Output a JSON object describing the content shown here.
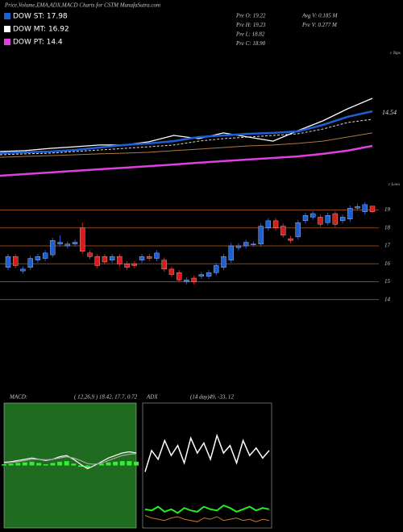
{
  "header": {
    "title": "Price,Volume,EMA,ADX,MACD Charts for CSTM MunafaSutra.com",
    "legend": [
      {
        "label": "DOW ST: 17.98",
        "color": "#1e5fd6"
      },
      {
        "label": "DOW MT: 16.92",
        "color": "#ffffff"
      },
      {
        "label": "DOW PT: 14.4",
        "color": "#e040e0"
      }
    ],
    "info": [
      "Pre  O: 19.22",
      "Pre  H: 19.23",
      "Pre  L: 18.82",
      "Pre  C: 18.90"
    ],
    "volume": [
      "Avg  V: 0.185 M",
      "Pre  V: 0.277 M"
    ]
  },
  "chart_data": [
    {
      "type": "line",
      "annotation": "14.54",
      "corner_label": "c Tops",
      "ylim": [
        12.5,
        20
      ],
      "series": [
        {
          "name": "Price",
          "color": "#ffffff",
          "values": [
            14.18,
            14.23,
            14.36,
            14.45,
            14.55,
            14.55,
            14.73,
            15.09,
            14.91,
            15.23,
            15.0,
            14.77,
            15.36,
            15.91,
            16.59,
            17.18
          ]
        },
        {
          "name": "EMA short",
          "color": "#1e5fd6",
          "values": [
            14.09,
            14.14,
            14.18,
            14.27,
            14.41,
            14.55,
            14.64,
            14.77,
            15.0,
            15.09,
            15.18,
            15.23,
            15.32,
            15.68,
            16.14,
            16.45
          ]
        },
        {
          "name": "EMA mid",
          "color": "#dddddd",
          "values": [
            14.0,
            14.05,
            14.09,
            14.18,
            14.27,
            14.36,
            14.45,
            14.55,
            14.77,
            14.91,
            15.0,
            15.09,
            15.18,
            15.45,
            15.82,
            16.0
          ]
        },
        {
          "name": "EMA long",
          "color": "#b07840",
          "values": [
            13.86,
            13.91,
            13.95,
            14.0,
            14.05,
            14.09,
            14.14,
            14.23,
            14.32,
            14.41,
            14.5,
            14.55,
            14.64,
            14.77,
            15.0,
            15.23
          ]
        },
        {
          "name": "EMA very long",
          "color": "#e040e0",
          "values": [
            12.82,
            12.91,
            13.0,
            13.09,
            13.18,
            13.27,
            13.36,
            13.45,
            13.55,
            13.64,
            13.73,
            13.82,
            13.91,
            14.05,
            14.23,
            14.5
          ]
        }
      ]
    },
    {
      "type": "candlestick",
      "corner_label": "c Lows",
      "ylim": [
        13.4,
        20.6
      ],
      "yticks": [
        14,
        15,
        16,
        17,
        18,
        19
      ],
      "up_color": "#1e5fd6",
      "down_color": "#d81b1b",
      "grid_color": "#8b4513",
      "open": [
        15.8,
        16.4,
        15.6,
        15.8,
        16.2,
        16.3,
        16.5,
        17.1,
        17.0,
        17.1,
        18.0,
        16.6,
        16.4,
        16.4,
        16.2,
        16.4,
        16.0,
        16.0,
        16.2,
        16.4,
        16.3,
        16.2,
        15.7,
        15.5,
        15.0,
        15.2,
        15.3,
        15.3,
        15.5,
        15.8,
        16.2,
        16.9,
        17.0,
        17.1,
        17.1,
        18.0,
        18.4,
        18.1,
        17.4,
        17.5,
        18.4,
        18.6,
        18.6,
        18.3,
        18.8,
        18.4,
        18.5,
        19.1,
        18.9,
        19.22
      ],
      "high": [
        16.55,
        16.55,
        15.85,
        16.45,
        16.55,
        16.75,
        17.45,
        17.6,
        17.25,
        17.35,
        18.3,
        16.75,
        16.55,
        16.55,
        16.55,
        16.55,
        16.15,
        16.15,
        16.55,
        16.55,
        16.75,
        16.35,
        15.85,
        15.65,
        15.25,
        15.35,
        15.55,
        15.65,
        16.05,
        16.55,
        17.15,
        17.15,
        17.35,
        17.25,
        18.25,
        18.55,
        18.55,
        18.25,
        17.55,
        18.45,
        18.85,
        18.95,
        18.75,
        18.85,
        18.95,
        18.75,
        19.25,
        19.35,
        19.45,
        19.23
      ],
      "low": [
        15.65,
        15.75,
        15.45,
        15.65,
        16.05,
        16.15,
        16.35,
        16.95,
        16.85,
        16.95,
        16.55,
        16.25,
        15.75,
        15.95,
        16.05,
        15.85,
        15.65,
        15.75,
        16.05,
        16.15,
        16.15,
        15.55,
        15.25,
        14.95,
        14.85,
        14.85,
        15.15,
        15.15,
        15.35,
        15.65,
        16.05,
        16.75,
        16.85,
        16.95,
        16.95,
        17.85,
        17.85,
        17.45,
        17.15,
        17.35,
        18.25,
        18.45,
        18.05,
        18.15,
        18.05,
        18.25,
        18.35,
        18.95,
        18.75,
        18.82
      ],
      "close": [
        16.4,
        15.9,
        15.7,
        16.3,
        16.4,
        16.6,
        17.3,
        17.2,
        17.1,
        17.2,
        16.7,
        16.4,
        15.9,
        16.1,
        16.4,
        16.0,
        15.8,
        15.9,
        16.4,
        16.3,
        16.6,
        15.7,
        15.4,
        15.1,
        15.1,
        15.0,
        15.4,
        15.5,
        15.9,
        16.4,
        17.0,
        17.0,
        17.2,
        17.1,
        18.1,
        18.4,
        18.0,
        17.6,
        17.3,
        18.3,
        18.7,
        18.8,
        18.2,
        18.7,
        18.2,
        18.6,
        19.1,
        19.2,
        19.3,
        18.9
      ]
    },
    {
      "type": "macd",
      "title": "MACD:",
      "subtitle": "( 12,26,9 ) 18.42,  17.7,  0.72",
      "ylim": [
        -1,
        1
      ],
      "background": "#1f6b1f",
      "series": [
        {
          "name": "MACD",
          "color": "#ffffff",
          "values": [
            0.05,
            0.06,
            0.08,
            0.1,
            0.12,
            0.1,
            0.08,
            0.1,
            0.14,
            0.16,
            0.1,
            0.02,
            -0.05,
            0.0,
            0.06,
            0.12,
            0.16,
            0.2,
            0.22,
            0.2
          ]
        },
        {
          "name": "Signal",
          "color": "#aaaaaa",
          "values": [
            0.04,
            0.05,
            0.06,
            0.08,
            0.1,
            0.1,
            0.09,
            0.1,
            0.12,
            0.14,
            0.12,
            0.08,
            0.03,
            0.02,
            0.04,
            0.08,
            0.12,
            0.16,
            0.18,
            0.19
          ]
        },
        {
          "name": "Histogram",
          "color": "#33ee33",
          "values": [
            0.02,
            0.03,
            0.04,
            0.05,
            0.06,
            0.04,
            0.02,
            0.04,
            0.06,
            0.07,
            0.03,
            -0.02,
            -0.04,
            0.0,
            0.03,
            0.05,
            0.06,
            0.07,
            0.07,
            0.06
          ]
        }
      ]
    },
    {
      "type": "adx",
      "title": "ADX",
      "subtitle": "(14  day)49,  -33,  12",
      "ylim": [
        0,
        100
      ],
      "background": "#000000",
      "series": [
        {
          "name": "ADX",
          "color": "#ffffff",
          "values": [
            45,
            62,
            55,
            70,
            58,
            66,
            52,
            72,
            60,
            68,
            55,
            74,
            60,
            66,
            52,
            70,
            58,
            64,
            56,
            62
          ]
        },
        {
          "name": "+DI",
          "color": "#22ee22",
          "values": [
            15,
            14,
            17,
            13,
            15,
            12,
            16,
            14,
            13,
            17,
            15,
            14,
            18,
            16,
            13,
            15,
            17,
            14,
            16,
            15
          ]
        },
        {
          "name": "-DI",
          "color": "#cc7722",
          "values": [
            10,
            8,
            7,
            6,
            8,
            9,
            7,
            6,
            5,
            8,
            7,
            9,
            6,
            7,
            8,
            6,
            7,
            5,
            7,
            6
          ]
        }
      ]
    }
  ]
}
